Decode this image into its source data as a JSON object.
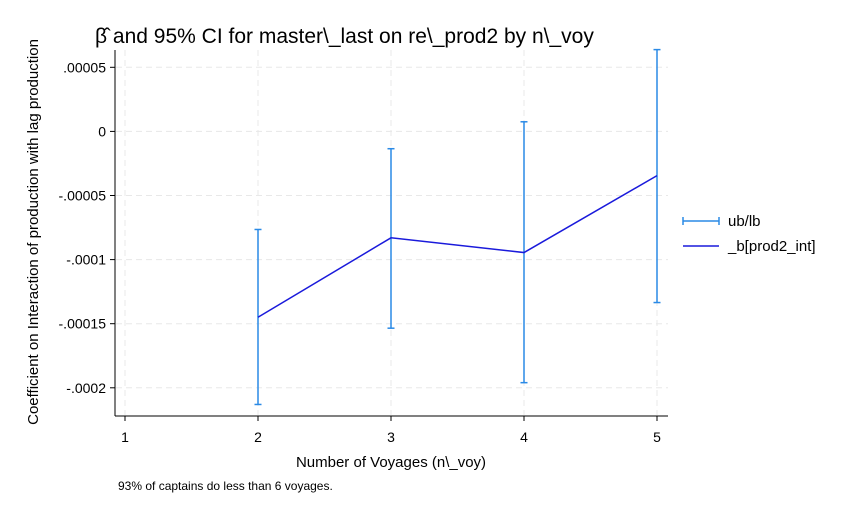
{
  "chart_data": {
    "type": "line",
    "title": "β̂ and 95% CI for master\\_last on re\\_prod2 by n\\_voy",
    "xlabel": "Number of Voyages (n\\_voy)",
    "ylabel": "Coefficient on Interaction of production with lag production",
    "note": "93% of captains do less than 6 voyages.",
    "xlim": [
      1,
      5
    ],
    "ylim": [
      -0.000222,
      6.35e-05
    ],
    "x_ticks": [
      {
        "value": 1,
        "label": "1"
      },
      {
        "value": 2,
        "label": "2"
      },
      {
        "value": 3,
        "label": "3"
      },
      {
        "value": 4,
        "label": "4"
      },
      {
        "value": 5,
        "label": "5"
      }
    ],
    "y_ticks": [
      {
        "value": 5e-05,
        "label": ".00005"
      },
      {
        "value": 0,
        "label": "0"
      },
      {
        "value": -5e-05,
        "label": "-.00005"
      },
      {
        "value": -0.0001,
        "label": "-.0001"
      },
      {
        "value": -0.00015,
        "label": "-.00015"
      },
      {
        "value": -0.0002,
        "label": "-.0002"
      }
    ],
    "grid": true,
    "legend_position": "right",
    "series": [
      {
        "name": "ub/lb",
        "kind": "errorbar",
        "color": "#2a8ae6",
        "x": [
          2,
          3,
          4,
          5
        ],
        "upper": [
          -7.65e-05,
          -1.35e-05,
          7.5e-06,
          6.38e-05
        ],
        "lower": [
          -0.000213,
          -0.0001535,
          -0.000196,
          -0.0001335
        ]
      },
      {
        "name": "_b[prod2_int]",
        "kind": "line",
        "color": "#1a1adb",
        "x": [
          2,
          3,
          4,
          5
        ],
        "y": [
          -0.000145,
          -8.3e-05,
          -9.45e-05,
          -3.45e-05
        ]
      }
    ]
  }
}
